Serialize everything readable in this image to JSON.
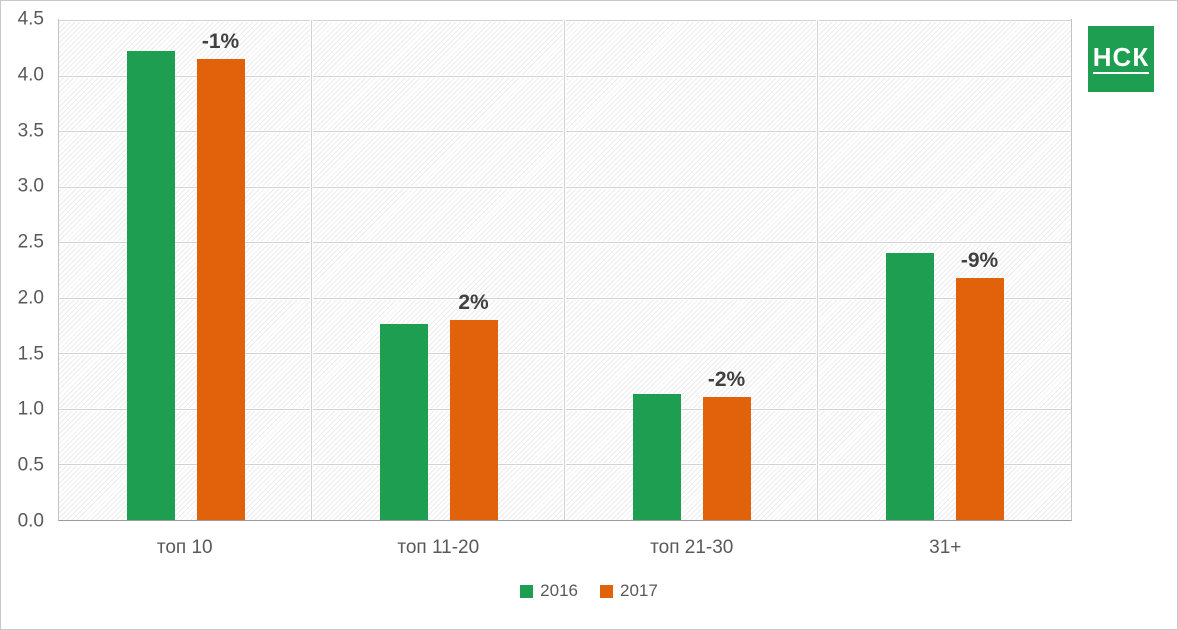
{
  "logo": {
    "text": "НСК",
    "background": "#1e9e50"
  },
  "chart_data": {
    "type": "bar",
    "categories": [
      "топ 10",
      "топ 11-20",
      "топ 21-30",
      "31+"
    ],
    "series": [
      {
        "name": "2016",
        "color": "#1e9e50",
        "values": [
          4.22,
          1.76,
          1.13,
          2.4
        ]
      },
      {
        "name": "2017",
        "color": "#e2620c",
        "values": [
          4.15,
          1.8,
          1.11,
          2.18
        ]
      }
    ],
    "data_labels": [
      "-1%",
      "2%",
      "-2%",
      "-9%"
    ],
    "title": "",
    "xlabel": "",
    "ylabel": "",
    "ylim": [
      0,
      4.5
    ],
    "ytick_step": 0.5,
    "ytick_labels": [
      "0.0",
      "0.5",
      "1.0",
      "1.5",
      "2.0",
      "2.5",
      "3.0",
      "3.5",
      "4.0",
      "4.5"
    ],
    "grid": true,
    "legend_position": "bottom"
  }
}
